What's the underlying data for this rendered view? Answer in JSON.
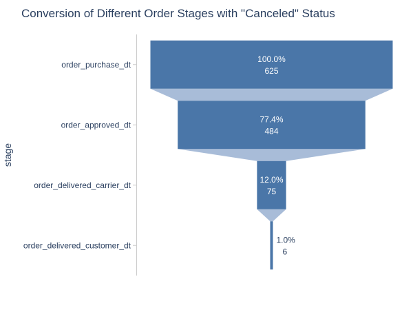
{
  "chart_data": {
    "type": "funnel",
    "title": "Conversion of Different Order Stages with \"Canceled\" Status",
    "ylabel": "stage",
    "categories": [
      "order_purchase_dt",
      "order_approved_dt",
      "order_delivered_carrier_dt",
      "order_delivered_customer_dt"
    ],
    "values": [
      625,
      484,
      75,
      6
    ],
    "percent_labels": [
      "100.0%",
      "77.4%",
      "12.0%",
      "1.0%"
    ],
    "value_labels": [
      "625",
      "484",
      "75",
      "6"
    ],
    "colors": {
      "bar": "#4a76a8",
      "connector": "#a8bcd8",
      "axis_line": "#cccccc",
      "text": "#2a3f5f",
      "inside_text": "#ffffff"
    }
  }
}
